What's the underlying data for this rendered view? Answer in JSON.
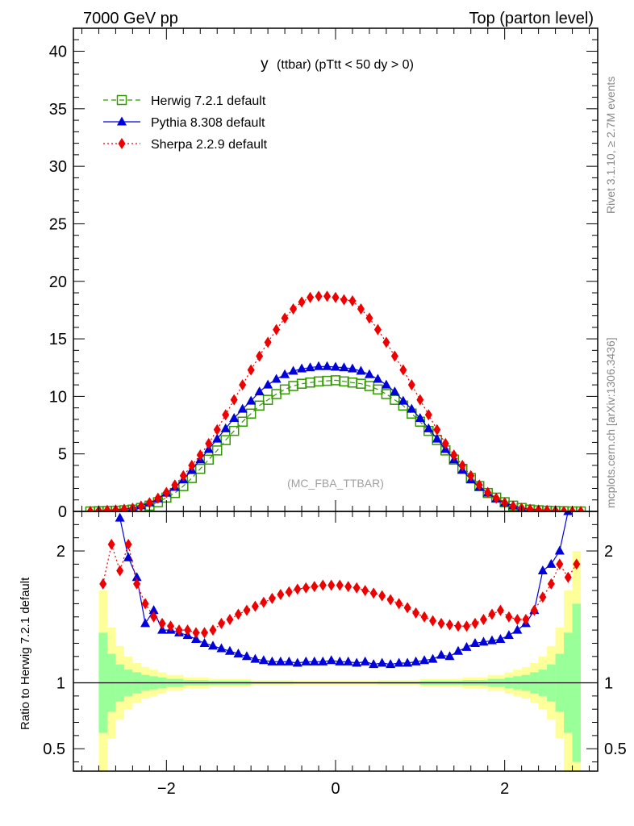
{
  "header": {
    "left": "7000 GeV pp",
    "right": "Top (parton level)"
  },
  "side_labels": {
    "rivet": "Rivet 3.1.10, ≥ 2.7M events",
    "mcplots": "mcplots.cern.ch [arXiv:1306.3436]"
  },
  "plot_title": {
    "main": "y",
    "sub": "(ttbar) (pTtt < 50 dy > 0)"
  },
  "watermark": "(MC_FBA_TTBAR)",
  "ratio_ylabel": "Ratio to Herwig 7.2.1 default",
  "colors": {
    "herwig": "#339900",
    "pythia": "#0000dd",
    "sherpa": "#ee0000",
    "band_inner": "#99ff99",
    "band_outer": "#ffff99"
  },
  "chart_data": {
    "type": "line",
    "xlim": [
      -3.1,
      3.1
    ],
    "ylim_main": [
      0,
      42
    ],
    "ylim_ratio": [
      0.33,
      2.3
    ],
    "x_ticks": [
      -2,
      0,
      2
    ],
    "x_tick_labels": [
      "−2",
      "0",
      "2"
    ],
    "y_ticks_main": [
      0,
      5,
      10,
      15,
      20,
      25,
      30,
      35,
      40
    ],
    "y_tick_labels_main": [
      "0",
      "5",
      "10",
      "15",
      "20",
      "25",
      "30",
      "35",
      "40"
    ],
    "y_ticks_ratio": [
      0.5,
      1,
      2
    ],
    "y_tick_labels_ratio": [
      "0.5",
      "1",
      "2"
    ],
    "legend_position": "top-left",
    "x": [
      -2.9,
      -2.8,
      -2.7,
      -2.6,
      -2.5,
      -2.4,
      -2.3,
      -2.2,
      -2.1,
      -2.0,
      -1.9,
      -1.8,
      -1.7,
      -1.6,
      -1.5,
      -1.4,
      -1.3,
      -1.2,
      -1.1,
      -1.0,
      -0.9,
      -0.8,
      -0.7,
      -0.6,
      -0.5,
      -0.4,
      -0.3,
      -0.2,
      -0.1,
      0.0,
      0.1,
      0.2,
      0.3,
      0.4,
      0.5,
      0.6,
      0.7,
      0.8,
      0.9,
      1.0,
      1.1,
      1.2,
      1.3,
      1.4,
      1.5,
      1.6,
      1.7,
      1.8,
      1.9,
      2.0,
      2.1,
      2.2,
      2.3,
      2.4,
      2.5,
      2.6,
      2.7,
      2.8,
      2.9
    ],
    "series": [
      {
        "name": "Herwig 7.2.1 default",
        "marker": "open-square",
        "line": "dashed",
        "color": "#339900",
        "values": [
          0.0,
          0.02,
          0.04,
          0.06,
          0.1,
          0.16,
          0.3,
          0.5,
          0.8,
          1.2,
          1.6,
          2.2,
          2.9,
          3.7,
          4.5,
          5.3,
          6.2,
          7.0,
          7.8,
          8.5,
          9.2,
          9.7,
          10.2,
          10.6,
          10.9,
          11.1,
          11.2,
          11.3,
          11.35,
          11.4,
          11.3,
          11.2,
          11.1,
          10.9,
          10.6,
          10.2,
          9.7,
          9.2,
          8.5,
          7.8,
          7.0,
          6.2,
          5.3,
          4.5,
          3.7,
          2.9,
          2.2,
          1.6,
          1.2,
          0.8,
          0.5,
          0.3,
          0.16,
          0.1,
          0.06,
          0.04,
          0.02,
          0.0,
          0.0
        ]
      },
      {
        "name": "Pythia 8.308 default",
        "marker": "triangle",
        "line": "solid",
        "color": "#0000dd",
        "values": [
          0.0,
          0.03,
          0.08,
          0.14,
          0.2,
          0.3,
          0.5,
          0.75,
          1.1,
          1.6,
          2.1,
          2.75,
          3.6,
          4.5,
          5.4,
          6.3,
          7.2,
          8.1,
          8.9,
          9.6,
          10.4,
          11.0,
          11.5,
          11.9,
          12.2,
          12.4,
          12.5,
          12.6,
          12.6,
          12.55,
          12.5,
          12.4,
          12.2,
          11.9,
          11.5,
          11.0,
          10.4,
          9.6,
          8.9,
          8.1,
          7.2,
          6.3,
          5.4,
          4.5,
          3.6,
          2.75,
          2.1,
          1.6,
          1.1,
          0.75,
          0.5,
          0.3,
          0.2,
          0.14,
          0.08,
          0.03,
          0.0,
          0.0,
          0.0
        ]
      },
      {
        "name": "Sherpa 2.2.9 default",
        "marker": "diamond",
        "line": "dotted",
        "color": "#ee0000",
        "values": [
          0.0,
          0.05,
          0.1,
          0.12,
          0.18,
          0.27,
          0.45,
          0.75,
          1.15,
          1.65,
          2.3,
          3.1,
          4.0,
          4.9,
          5.9,
          7.1,
          8.4,
          9.7,
          11.0,
          12.3,
          13.5,
          14.7,
          15.8,
          16.8,
          17.6,
          18.2,
          18.6,
          18.7,
          18.7,
          18.6,
          18.4,
          18.3,
          17.6,
          16.8,
          15.8,
          14.7,
          13.5,
          12.3,
          11.0,
          9.7,
          8.4,
          7.1,
          5.9,
          4.9,
          4.0,
          3.1,
          2.3,
          1.65,
          1.15,
          0.75,
          0.45,
          0.27,
          0.18,
          0.12,
          0.1,
          0.05,
          0.0,
          0.0,
          0.0
        ]
      }
    ],
    "ratio_series": [
      {
        "name": "Pythia 8.308 default",
        "x": [
          -2.55,
          -2.45,
          -2.35,
          -2.25,
          -2.15,
          -2.05,
          -1.95,
          -1.85,
          -1.75,
          -1.65,
          -1.55,
          -1.45,
          -1.35,
          -1.25,
          -1.15,
          -1.05,
          -0.95,
          -0.85,
          -0.75,
          -0.65,
          -0.55,
          -0.45,
          -0.35,
          -0.25,
          -0.15,
          -0.05,
          0.05,
          0.15,
          0.25,
          0.35,
          0.45,
          0.55,
          0.65,
          0.75,
          0.85,
          0.95,
          1.05,
          1.15,
          1.25,
          1.35,
          1.45,
          1.55,
          1.65,
          1.75,
          1.85,
          1.95,
          2.05,
          2.15,
          2.25,
          2.35,
          2.45,
          2.55,
          2.65,
          2.75
        ],
        "values": [
          2.25,
          1.95,
          1.8,
          1.45,
          1.55,
          1.4,
          1.4,
          1.38,
          1.36,
          1.33,
          1.3,
          1.28,
          1.26,
          1.24,
          1.22,
          1.2,
          1.18,
          1.17,
          1.16,
          1.16,
          1.16,
          1.15,
          1.16,
          1.16,
          1.16,
          1.17,
          1.16,
          1.16,
          1.15,
          1.16,
          1.14,
          1.15,
          1.14,
          1.15,
          1.15,
          1.16,
          1.17,
          1.18,
          1.21,
          1.2,
          1.24,
          1.27,
          1.3,
          1.31,
          1.32,
          1.33,
          1.36,
          1.4,
          1.45,
          1.55,
          1.85,
          1.9,
          2.0,
          2.3
        ]
      },
      {
        "name": "Sherpa 2.2.9 default",
        "x": [
          -2.75,
          -2.65,
          -2.55,
          -2.45,
          -2.35,
          -2.25,
          -2.15,
          -2.05,
          -1.95,
          -1.85,
          -1.75,
          -1.65,
          -1.55,
          -1.45,
          -1.35,
          -1.25,
          -1.15,
          -1.05,
          -0.95,
          -0.85,
          -0.75,
          -0.65,
          -0.55,
          -0.45,
          -0.35,
          -0.25,
          -0.15,
          -0.05,
          0.05,
          0.15,
          0.25,
          0.35,
          0.45,
          0.55,
          0.65,
          0.75,
          0.85,
          0.95,
          1.05,
          1.15,
          1.25,
          1.35,
          1.45,
          1.55,
          1.65,
          1.75,
          1.85,
          1.95,
          2.05,
          2.15,
          2.25,
          2.35,
          2.45,
          2.55,
          2.65,
          2.75,
          2.85
        ],
        "values": [
          1.75,
          2.05,
          1.85,
          2.05,
          1.75,
          1.6,
          1.5,
          1.45,
          1.43,
          1.4,
          1.4,
          1.38,
          1.38,
          1.4,
          1.45,
          1.48,
          1.52,
          1.55,
          1.58,
          1.61,
          1.64,
          1.67,
          1.69,
          1.71,
          1.72,
          1.73,
          1.74,
          1.74,
          1.74,
          1.73,
          1.72,
          1.7,
          1.68,
          1.66,
          1.63,
          1.6,
          1.57,
          1.53,
          1.5,
          1.47,
          1.45,
          1.44,
          1.43,
          1.43,
          1.45,
          1.48,
          1.52,
          1.55,
          1.5,
          1.48,
          1.48,
          1.55,
          1.65,
          1.75,
          1.9,
          1.8,
          1.9
        ]
      }
    ],
    "bands": {
      "x_edges": [
        -2.8,
        -2.7,
        -2.6,
        -2.5,
        -2.4,
        -2.3,
        -2.2,
        -2.1,
        -2.0,
        -1.8,
        -1.5,
        -1.0,
        -0.5,
        0.5,
        1.0,
        1.5,
        1.8,
        2.0,
        2.1,
        2.2,
        2.3,
        2.4,
        2.5,
        2.6,
        2.7,
        2.8,
        2.9
      ],
      "inner": [
        0.38,
        0.22,
        0.14,
        0.1,
        0.08,
        0.06,
        0.05,
        0.04,
        0.03,
        0.02,
        0.015,
        0.01,
        0.008,
        0.01,
        0.015,
        0.02,
        0.03,
        0.04,
        0.05,
        0.06,
        0.08,
        0.1,
        0.14,
        0.22,
        0.38,
        0.6
      ],
      "outer": [
        0.7,
        0.42,
        0.28,
        0.2,
        0.15,
        0.12,
        0.1,
        0.08,
        0.06,
        0.04,
        0.03,
        0.02,
        0.015,
        0.02,
        0.03,
        0.04,
        0.06,
        0.08,
        0.1,
        0.12,
        0.15,
        0.2,
        0.28,
        0.42,
        0.7,
        1.0
      ]
    }
  }
}
